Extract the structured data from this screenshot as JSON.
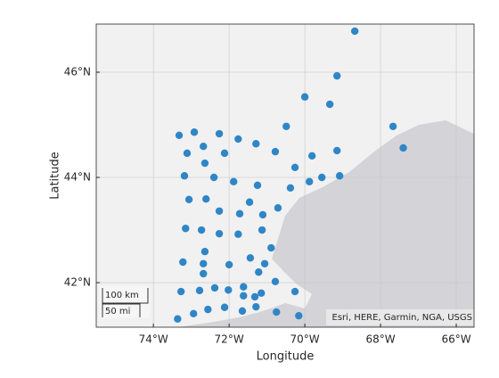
{
  "chart_data": {
    "type": "scatter",
    "xlabel": "Longitude",
    "ylabel": "Latitude",
    "x": [
      -68.68,
      -69.15,
      -70.0,
      -69.34,
      -67.67,
      -70.49,
      -73.32,
      -72.92,
      -72.26,
      -71.76,
      -71.29,
      -72.68,
      -67.4,
      -73.11,
      -72.12,
      -70.78,
      -69.15,
      -69.81,
      -72.64,
      -70.26,
      -73.18,
      -72.4,
      -69.08,
      -69.55,
      -69.88,
      -71.88,
      -71.25,
      -70.38,
      -73.06,
      -72.61,
      -71.46,
      -72.26,
      -70.71,
      -71.72,
      -71.11,
      -73.15,
      -72.73,
      -72.26,
      -71.76,
      -71.13,
      -70.89,
      -72.64,
      -71.44,
      -73.22,
      -72.68,
      -72.0,
      -71.06,
      -71.22,
      -72.68,
      -70.78,
      -73.27,
      -72.78,
      -72.38,
      -72.02,
      -71.62,
      -71.15,
      -71.32,
      -71.62,
      -70.26,
      -71.29,
      -72.56,
      -72.12,
      -72.94,
      -71.65,
      -70.75,
      -70.16,
      -73.36
    ],
    "values": [
      46.78,
      45.93,
      45.53,
      45.39,
      44.97,
      44.97,
      44.8,
      44.86,
      44.83,
      44.73,
      44.64,
      44.59,
      44.56,
      44.46,
      44.46,
      44.49,
      44.51,
      44.41,
      44.27,
      44.19,
      44.03,
      44.0,
      44.03,
      44.0,
      43.92,
      43.92,
      43.85,
      43.8,
      43.58,
      43.59,
      43.53,
      43.36,
      43.42,
      43.31,
      43.29,
      43.03,
      43.0,
      42.93,
      42.92,
      43.0,
      42.66,
      42.59,
      42.47,
      42.39,
      42.36,
      42.34,
      42.36,
      42.2,
      42.17,
      42.02,
      41.83,
      41.85,
      41.9,
      41.86,
      41.92,
      41.8,
      41.73,
      41.75,
      41.83,
      41.54,
      41.49,
      41.53,
      41.41,
      41.46,
      41.44,
      41.37,
      41.31
    ],
    "color": "#2f86c6",
    "xlim": [
      -75.51,
      -65.53
    ],
    "ylim": [
      41.153,
      46.915
    ],
    "xticks": [
      {
        "value": -74,
        "label": "74°W"
      },
      {
        "value": -72,
        "label": "72°W"
      },
      {
        "value": -70,
        "label": "70°W"
      },
      {
        "value": -68,
        "label": "68°W"
      },
      {
        "value": -66,
        "label": "66°W"
      }
    ],
    "yticks": [
      {
        "value": 42,
        "label": "42°N"
      },
      {
        "value": 44,
        "label": "44°N"
      },
      {
        "value": 46,
        "label": "46°N"
      }
    ],
    "grid": true,
    "scale_bar": [
      "100 km",
      "50 mi"
    ],
    "attribution": "Esri, HERE, Garmin, NGA, USGS"
  }
}
